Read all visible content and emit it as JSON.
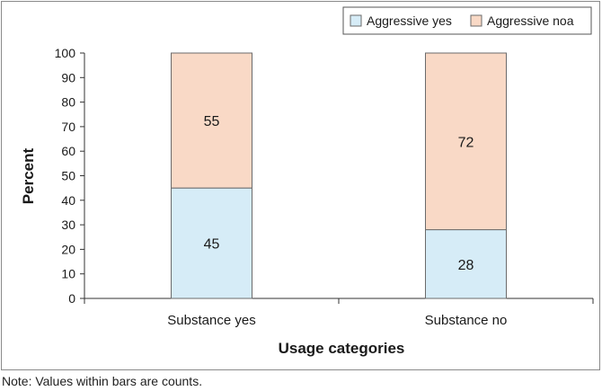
{
  "chart_data": {
    "type": "bar",
    "stacked": true,
    "categories": [
      "Substance yes",
      "Substance no"
    ],
    "series": [
      {
        "name": "Aggressive yes",
        "values": [
          45,
          28
        ],
        "color": "#d6ecf7"
      },
      {
        "name": "Aggressive noa",
        "values": [
          55,
          72
        ],
        "color": "#f9d9c6"
      }
    ],
    "xlabel": "Usage categories",
    "ylabel": "Percent",
    "ylim": [
      0,
      100
    ],
    "yticks": [
      0,
      10,
      20,
      30,
      40,
      50,
      60,
      70,
      80,
      90,
      100
    ],
    "grid": false,
    "legend_position": "top-right",
    "bar_edge_color": "#6b6b6b"
  },
  "note": "Note: Values within bars are counts."
}
